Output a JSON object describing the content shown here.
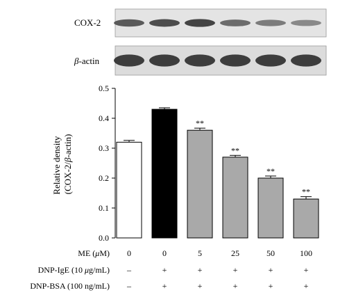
{
  "blots": [
    {
      "label": "COX-2",
      "intensities": [
        0.72,
        0.8,
        0.86,
        0.6,
        0.5,
        0.42
      ]
    },
    {
      "label_prefix": "β",
      "label_suffix": "-actin",
      "intensities": [
        0.9,
        0.9,
        0.9,
        0.9,
        0.9,
        0.9
      ]
    }
  ],
  "chart_data": {
    "type": "bar",
    "ylabel_line1": "Relative density",
    "ylabel_line2_prefix": "(COX-2/",
    "ylabel_line2_greek": "β",
    "ylabel_line2_suffix": "-actin)",
    "ylim": [
      0,
      0.5
    ],
    "yticks": [
      "0.0",
      "0.1",
      "0.2",
      "0.3",
      "0.4",
      "0.5"
    ],
    "bars": [
      {
        "value": 0.32,
        "error": 0.006,
        "fill": "#ffffff",
        "sig": ""
      },
      {
        "value": 0.43,
        "error": 0.005,
        "fill": "#000000",
        "sig": ""
      },
      {
        "value": 0.36,
        "error": 0.007,
        "fill": "#a9a9a9",
        "sig": "**"
      },
      {
        "value": 0.27,
        "error": 0.006,
        "fill": "#a9a9a9",
        "sig": "**"
      },
      {
        "value": 0.2,
        "error": 0.007,
        "fill": "#a9a9a9",
        "sig": "**"
      },
      {
        "value": 0.13,
        "error": 0.008,
        "fill": "#a9a9a9",
        "sig": "**"
      }
    ],
    "condition_rows": [
      {
        "label_prefix": "ME (",
        "label_greek": "μ",
        "label_suffix": "M)",
        "values": [
          "0",
          "0",
          "5",
          "25",
          "50",
          "100"
        ]
      },
      {
        "label_prefix": "DNP-IgE (10 ",
        "label_greek": "μ",
        "label_suffix": "g/mL)",
        "values": [
          "–",
          "+",
          "+",
          "+",
          "+",
          "+"
        ]
      },
      {
        "label_prefix": "DNP-BSA (100 ng/mL)",
        "label_greek": "",
        "label_suffix": "",
        "values": [
          "–",
          "+",
          "+",
          "+",
          "+",
          "+"
        ]
      }
    ]
  }
}
